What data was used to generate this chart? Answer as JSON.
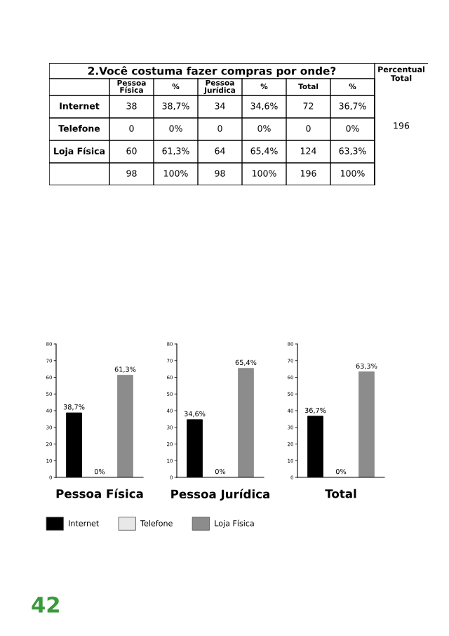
{
  "chart_data": [
    {
      "type": "other",
      "title": "2.Você costuma fazer compras por onde?",
      "categories": [
        "Pessoa Física",
        "%",
        "Pessoa Jurídica",
        "%",
        "Total",
        "%"
      ],
      "y_categories": [
        "Internet",
        "Telefone",
        "Loja Física",
        null
      ],
      "cell_labels": [
        [
          "38",
          "38,7%",
          "34",
          "34,6%",
          "72",
          "36,7%"
        ],
        [
          "0",
          "0%",
          "0",
          "0%",
          "0",
          "0%"
        ],
        [
          "60",
          "61,3%",
          "64",
          "65,4%",
          "124",
          "63,3%"
        ],
        [
          "98",
          "100%",
          "98",
          "100%",
          "196",
          "100%"
        ]
      ],
      "annotations": [
        "Percentual Total",
        "196",
        "42"
      ]
    },
    {
      "type": "bar",
      "xlabel": "Pessoa Física",
      "categories": [
        null
      ],
      "ylim": [
        0,
        80
      ],
      "yticks": [
        0,
        10,
        20,
        30,
        40,
        50,
        60,
        70,
        80
      ],
      "legend": "bottom",
      "series": [
        {
          "name": "Internet",
          "color": "#000000",
          "values": [
            38.7
          ],
          "value_labels": [
            "38,7%"
          ]
        },
        {
          "name": "Telefone",
          "color": "#e8e8e8",
          "values": [
            0
          ],
          "value_labels": [
            "0%"
          ]
        },
        {
          "name": "Loja Física",
          "color": "#8c8c8c",
          "values": [
            61.3
          ],
          "value_labels": [
            "61,3%"
          ]
        }
      ]
    },
    {
      "type": "bar",
      "xlabel": "Pessoa Jurídica",
      "categories": [
        null
      ],
      "ylim": [
        0,
        80
      ],
      "yticks": [
        0,
        10,
        20,
        30,
        40,
        50,
        60,
        70,
        80
      ],
      "series": [
        {
          "color": "#000000",
          "values": [
            34.6
          ],
          "value_labels": [
            "34,6%"
          ]
        },
        {
          "color": "#e8e8e8",
          "values": [
            0
          ],
          "value_labels": [
            "0%"
          ]
        },
        {
          "color": "#8c8c8c",
          "values": [
            65.4
          ],
          "value_labels": [
            "65,4%"
          ]
        }
      ]
    },
    {
      "type": "bar",
      "xlabel": "Total",
      "categories": [
        null
      ],
      "ylim": [
        0,
        80
      ],
      "yticks": [
        0,
        10,
        20,
        30,
        40,
        50,
        60,
        70,
        80
      ],
      "series": [
        {
          "color": "#000000",
          "values": [
            36.7
          ],
          "value_labels": [
            "36,7%"
          ]
        },
        {
          "color": "#e8e8e8",
          "values": [
            0
          ],
          "value_labels": [
            "0%"
          ]
        },
        {
          "color": "#8c8c8c",
          "values": [
            63.3
          ],
          "value_labels": [
            "63,3%"
          ]
        }
      ]
    }
  ]
}
